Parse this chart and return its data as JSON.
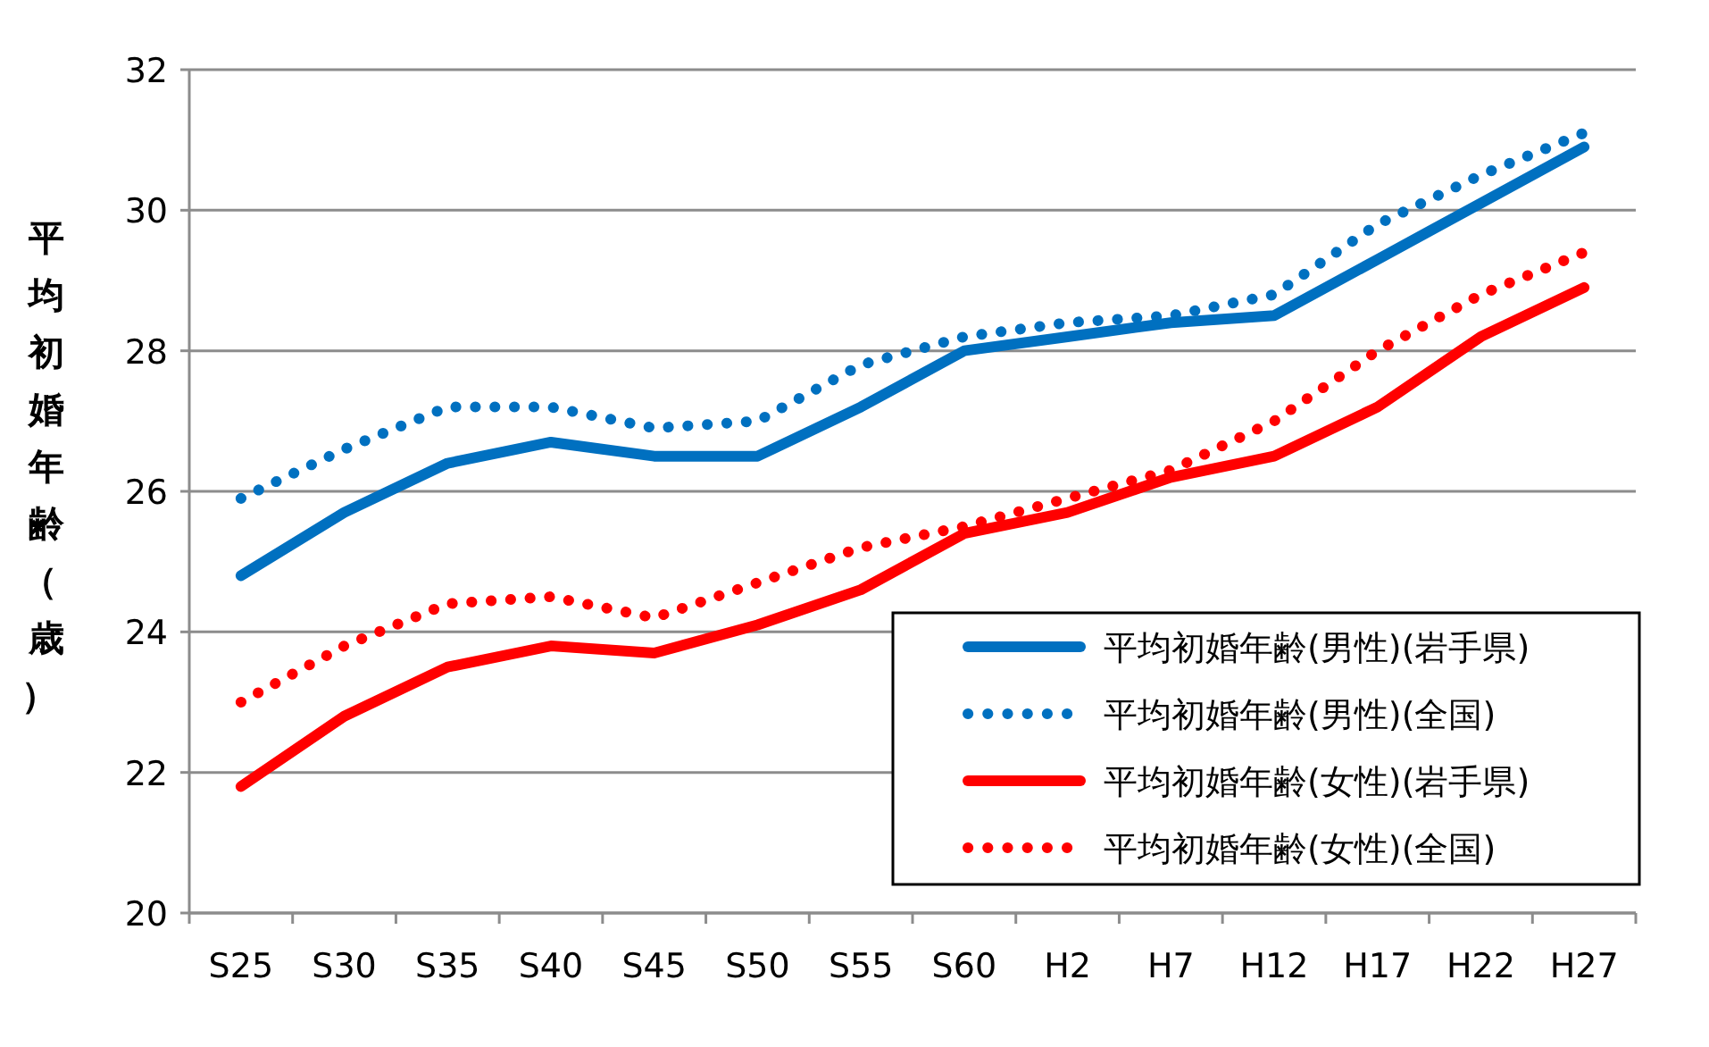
{
  "chart_data": {
    "type": "line",
    "ylabel": "平均初婚年齢（歳）",
    "categories": [
      "S25",
      "S30",
      "S35",
      "S40",
      "S45",
      "S50",
      "S55",
      "S60",
      "H2",
      "H7",
      "H12",
      "H17",
      "H22",
      "H27"
    ],
    "series": [
      {
        "name": "平均初婚年齢(男性)(岩手県)",
        "color": "#0070c0",
        "line_style": "solid",
        "values": [
          24.8,
          25.7,
          26.4,
          26.7,
          26.5,
          26.5,
          27.2,
          28.0,
          28.2,
          28.4,
          28.5,
          29.3,
          30.1,
          30.9
        ]
      },
      {
        "name": "平均初婚年齢(男性)(全国)",
        "color": "#0070c0",
        "line_style": "dotted",
        "values": [
          25.9,
          26.6,
          27.2,
          27.2,
          26.9,
          27.0,
          27.8,
          28.2,
          28.4,
          28.5,
          28.8,
          29.8,
          30.5,
          31.1
        ]
      },
      {
        "name": "平均初婚年齢(女性)(岩手県)",
        "color": "#ff0000",
        "line_style": "solid",
        "values": [
          21.8,
          22.8,
          23.5,
          23.8,
          23.7,
          24.1,
          24.6,
          25.4,
          25.7,
          26.2,
          26.5,
          27.2,
          28.2,
          28.9
        ]
      },
      {
        "name": "平均初婚年齢(女性)(全国)",
        "color": "#ff0000",
        "line_style": "dotted",
        "values": [
          23.0,
          23.8,
          24.4,
          24.5,
          24.2,
          24.7,
          25.2,
          25.5,
          25.9,
          26.3,
          27.0,
          28.0,
          28.8,
          29.4
        ]
      }
    ],
    "ylim": [
      20,
      32
    ],
    "yticks": [
      20,
      22,
      24,
      26,
      28,
      30,
      32
    ],
    "grid": "y",
    "legend": "bottom right",
    "marker": "none"
  }
}
